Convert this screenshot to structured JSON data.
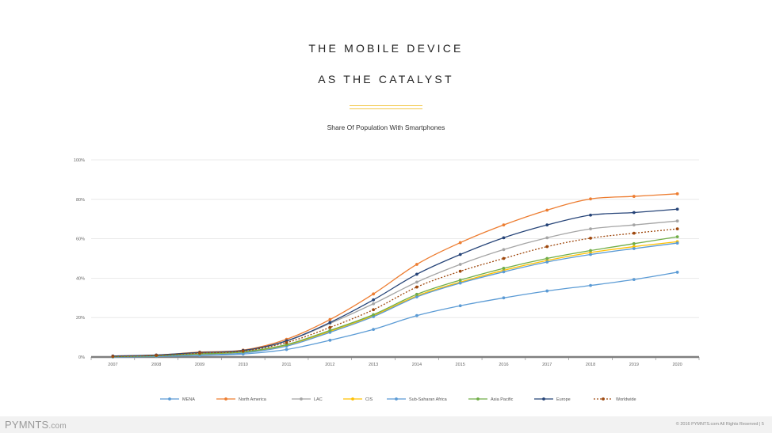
{
  "slide": {
    "title_line1": "THE MOBILE DEVICE",
    "title_line2": "AS THE CATALYST"
  },
  "footer": {
    "brand": "PYMNTS",
    "brand_suffix": ".com",
    "copyright": "© 2016 PYMNTS.com All Rights Reserved   |   5"
  },
  "chart_data": {
    "type": "line",
    "title": "Share Of Population With Smartphones",
    "xlabel": "",
    "ylabel": "",
    "ylim": [
      0,
      100
    ],
    "yticks": [
      0,
      20,
      40,
      60,
      80,
      100
    ],
    "ytick_labels": [
      "0%",
      "20%",
      "40%",
      "60%",
      "80%",
      "100%"
    ],
    "grid": true,
    "legend_position": "bottom",
    "x": [
      "2007",
      "2008",
      "2009",
      "2010",
      "2011",
      "2012",
      "2013",
      "2014",
      "2015",
      "2016",
      "2017",
      "2018",
      "2019",
      "2020"
    ],
    "series": [
      {
        "name": "MENA",
        "color": "#5b9bd5",
        "dashed": false,
        "values": [
          0,
          0.3,
          0.8,
          1.5,
          3.8,
          8.5,
          14,
          21,
          26,
          30,
          33.5,
          36.3,
          39.3,
          43
        ]
      },
      {
        "name": "North America",
        "color": "#ed7d31",
        "dashed": false,
        "values": [
          0.5,
          1,
          2.5,
          3.5,
          9,
          19,
          32,
          47,
          58,
          67,
          74.5,
          80.2,
          81.5,
          82.8
        ]
      },
      {
        "name": "LAC",
        "color": "#a5a5a5",
        "dashed": false,
        "values": [
          0.3,
          0.8,
          2,
          3,
          8,
          17,
          27,
          38,
          47,
          54.5,
          60.5,
          65,
          67,
          69
        ]
      },
      {
        "name": "CIS",
        "color": "#ffc000",
        "dashed": false,
        "values": [
          0.2,
          0.5,
          1.5,
          2.5,
          6,
          13,
          21,
          31,
          38,
          44,
          49,
          53,
          56,
          58.5
        ]
      },
      {
        "name": "Sub-Saharan Africa",
        "color": "#5b9bd5",
        "dashed": false,
        "values": [
          0.1,
          0.3,
          1,
          2,
          5.5,
          12.5,
          20.5,
          30.5,
          37.5,
          43.2,
          48.2,
          52,
          55,
          57.8
        ]
      },
      {
        "name": "Asia Pacific",
        "color": "#70ad47",
        "dashed": false,
        "values": [
          0.2,
          0.6,
          1.6,
          2.6,
          6.3,
          13.5,
          21.5,
          31.8,
          39,
          45,
          50,
          54,
          57.5,
          61
        ]
      },
      {
        "name": "Europe",
        "color": "#264478",
        "dashed": false,
        "values": [
          0.5,
          1,
          2.3,
          3.3,
          8.2,
          17.5,
          29,
          42,
          52,
          60.5,
          67,
          72,
          73.3,
          75
        ]
      },
      {
        "name": "Worldwide",
        "color": "#9e480e",
        "dashed": true,
        "values": [
          0.3,
          0.8,
          2,
          3,
          7.3,
          15,
          24,
          35.5,
          43.5,
          50,
          56,
          60.3,
          62.8,
          65
        ]
      }
    ]
  }
}
